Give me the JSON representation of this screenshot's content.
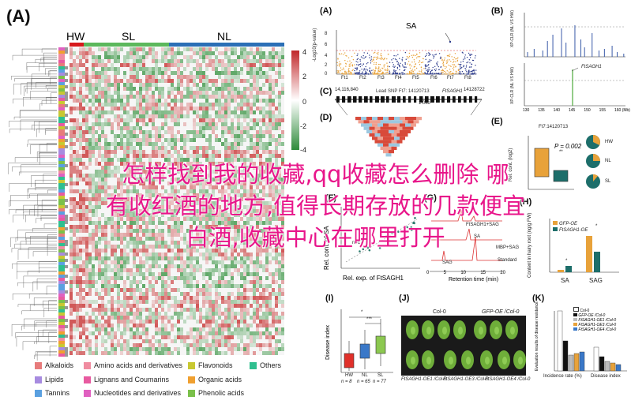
{
  "panels": {
    "A_main": "(A)",
    "A": "(A)",
    "B": "(B)",
    "C": "(C)",
    "D": "(D)",
    "E": "(E)",
    "F": "(F)",
    "G": "(G)",
    "H": "(H)",
    "I": "(I)",
    "J": "(J)",
    "K": "(K)"
  },
  "heatmap": {
    "groups": [
      "HW",
      "SL",
      "NL"
    ],
    "group_colors": [
      "#d7191c",
      "#5cb85c",
      "#2b6fb6"
    ],
    "scale_ticks": [
      "4",
      "2",
      "0",
      "-2",
      "-4"
    ]
  },
  "legend": [
    {
      "label": "Alkaloids",
      "color": "#e77b7b"
    },
    {
      "label": "Amino acids and derivatives",
      "color": "#f08ca0"
    },
    {
      "label": "Flavonoids",
      "color": "#c8c832"
    },
    {
      "label": "Others",
      "color": "#2fbf8f"
    },
    {
      "label": "Lipids",
      "color": "#a78be0"
    },
    {
      "label": "Lignans and Coumarins",
      "color": "#e85aa0"
    },
    {
      "label": "Organic acids",
      "color": "#f0a030"
    },
    {
      "label": "Tannins",
      "color": "#5aa0e0"
    },
    {
      "label": "Nucleotides and derivatives",
      "color": "#e060c0"
    },
    {
      "label": "Phenolic acids",
      "color": "#7ac04a"
    }
  ],
  "manhattan": {
    "title": "SA",
    "ylabel": "-Log10(p-value)",
    "yticks": [
      "8",
      "6",
      "4",
      "2",
      "0"
    ],
    "chroms": [
      "Ft1",
      "Ft2",
      "Ft3",
      "Ft4",
      "Ft5",
      "Ft6",
      "Ft7",
      "Ft8"
    ]
  },
  "xpclr": {
    "ylabel_top": "XP-CLR (NL VS HW)",
    "ylabel_bottom": "XP-CLR (NL VS HW)",
    "yticks_top": [
      "40",
      "30",
      "20",
      "10",
      "0"
    ],
    "yticks_bottom": [
      "40",
      "30",
      "20",
      "10",
      "0"
    ],
    "xticks": [
      "130",
      "135",
      "140",
      "145",
      "150",
      "155",
      "160 (Mb)"
    ],
    "gene_label": "FtSAGH1"
  },
  "gene_model": {
    "left_pos": "14,116,840",
    "right_pos": "14128722",
    "lead_snp": "Lead SNP Ft7: 14120713",
    "gene": "FtSAGH1",
    "scale": "1.0kb"
  },
  "boxplot_e": {
    "title": "Ft7:14120713",
    "ylabel": "Rel. cont. (log2)",
    "pvalue": "P = 0.002",
    "sig": "**",
    "pies": [
      "HW",
      "NL",
      "SL"
    ]
  },
  "overlay_text": [
    "怎样找到我的收藏,qq收藏怎么删除 哪",
    "有收红酒的地方,值得长期存放的几款便宜",
    "白酒,收藏中心在哪里打开"
  ],
  "panel_f": {
    "xlabel": "Rel. exp. of FtSAGH1",
    "ylabel": "Rel. cont. of SA",
    "n": "n=17"
  },
  "panel_g": {
    "labels": [
      "FtSAGH1+SAG",
      "MBP+SAG",
      "Standard",
      "SAG",
      "SA"
    ],
    "xlabel": "Retention time (min)",
    "xticks": [
      "0",
      "5",
      "10",
      "15",
      "20"
    ]
  },
  "panel_h": {
    "ylabel": "Content in hairy root (ng/g FW)",
    "legend": [
      "GFP-OE",
      "FtSAGH1-OE"
    ],
    "groups": [
      "SA",
      "SAG"
    ],
    "sig": [
      "*",
      "*"
    ],
    "yticks": [
      "800",
      "600",
      "400",
      "200",
      "0"
    ]
  },
  "panel_i": {
    "ylabel": "Disease index",
    "groups": [
      "HW",
      "NL",
      "SL"
    ],
    "ns": [
      "n = 8",
      "n = 65",
      "n = 77"
    ],
    "colors": [
      "#e0302a",
      "#3a78c8",
      "#8cc850"
    ],
    "medians": [
      20,
      32,
      40
    ],
    "sig": [
      "*",
      "***"
    ],
    "yticks": [
      "100",
      "80",
      "60",
      "40",
      "20",
      "0"
    ]
  },
  "panel_j": {
    "top_labels": [
      "Col-0",
      "GFP-OE /Col-0"
    ],
    "bottom_labels": [
      "FtSAGH1-OE1 /Col-0",
      "FtSAGH1-OE3 /Col-0",
      "FtSAGH1-OE4 /Col-0"
    ]
  },
  "panel_k": {
    "ylabel": "Evaluation results of disease resistance",
    "legend": [
      "Col-0",
      "GFP-OE /Col-0",
      "FtSAGH1-OE1 /Col-0",
      "FtSAGH1-OE3 /Col-0",
      "FtSAGH1-OE4 /Col-0"
    ],
    "xgroups": [
      "Incidence rate (%)",
      "Disease index"
    ],
    "yticks": [
      "100",
      "80",
      "60",
      "40",
      "20",
      "0"
    ]
  }
}
